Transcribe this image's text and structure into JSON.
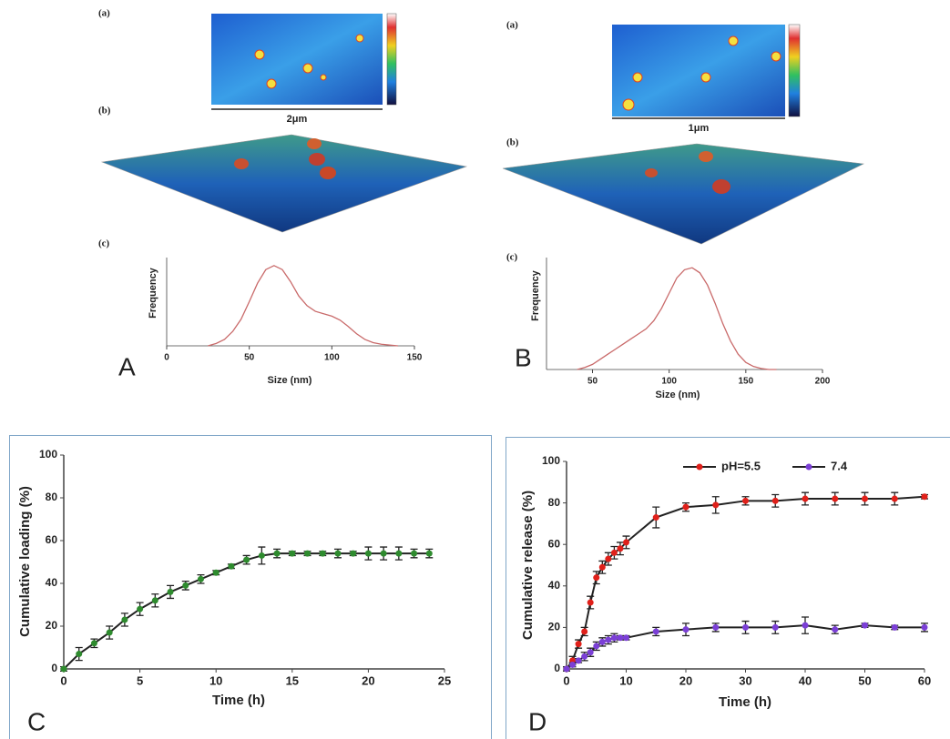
{
  "chart_data": [
    {
      "type": "line",
      "panel": "A",
      "subpanel_labels": [
        "(a)",
        "(b)",
        "(c)"
      ],
      "scale_bar": "2μm",
      "xlabel": "Size (nm)",
      "ylabel": "Frequency",
      "color": "#c96a6a",
      "x": [
        25,
        30,
        35,
        40,
        45,
        50,
        55,
        60,
        65,
        70,
        75,
        80,
        85,
        90,
        95,
        100,
        105,
        110,
        115,
        120,
        125,
        130,
        135,
        140
      ],
      "values": [
        0,
        0.03,
        0.08,
        0.18,
        0.33,
        0.55,
        0.78,
        0.95,
        1.0,
        0.95,
        0.8,
        0.62,
        0.5,
        0.43,
        0.4,
        0.37,
        0.32,
        0.24,
        0.15,
        0.08,
        0.04,
        0.02,
        0.01,
        0
      ],
      "xlim": [
        0,
        150
      ],
      "xticks": [
        0,
        50,
        100,
        150
      ],
      "ylim": [
        0,
        1.1
      ]
    },
    {
      "type": "line",
      "panel": "B",
      "subpanel_labels": [
        "(a)",
        "(b)",
        "(c)"
      ],
      "scale_bar": "1μm",
      "xlabel": "Size (nm)",
      "ylabel": "Frequency",
      "color": "#c96a6a",
      "x": [
        40,
        45,
        50,
        55,
        60,
        65,
        70,
        75,
        80,
        85,
        90,
        95,
        100,
        105,
        110,
        115,
        120,
        125,
        130,
        135,
        140,
        145,
        150,
        155,
        160,
        165,
        170
      ],
      "values": [
        0,
        0.02,
        0.05,
        0.1,
        0.15,
        0.2,
        0.25,
        0.3,
        0.35,
        0.4,
        0.48,
        0.6,
        0.75,
        0.9,
        0.98,
        1.0,
        0.95,
        0.83,
        0.65,
        0.45,
        0.28,
        0.15,
        0.07,
        0.03,
        0.01,
        0,
        0
      ],
      "xlim": [
        20,
        200
      ],
      "xticks": [
        50,
        100,
        150,
        200
      ],
      "ylim": [
        0,
        1.1
      ]
    },
    {
      "type": "line",
      "panel": "C",
      "xlabel": "Time (h)",
      "ylabel": "Cumulative loading (%)",
      "markers": true,
      "color": "#2e8b2e",
      "x": [
        0,
        1,
        2,
        3,
        4,
        5,
        6,
        7,
        8,
        9,
        10,
        11,
        12,
        13,
        14,
        15,
        16,
        17,
        18,
        19,
        20,
        21,
        22,
        23,
        24
      ],
      "values": [
        0,
        7,
        12,
        17,
        23,
        28,
        32,
        36,
        39,
        42,
        45,
        48,
        51,
        53,
        54,
        54,
        54,
        54,
        54,
        54,
        54,
        54,
        54,
        54,
        54
      ],
      "errors": [
        1,
        3,
        2,
        3,
        3,
        3,
        3,
        3,
        2,
        2,
        1,
        1,
        2,
        4,
        2,
        1,
        1,
        1,
        2,
        1,
        3,
        3,
        3,
        2,
        2
      ],
      "xlim": [
        0,
        25
      ],
      "xticks": [
        0,
        5,
        10,
        15,
        20,
        25
      ],
      "ylim": [
        0,
        100
      ],
      "yticks": [
        0,
        20,
        40,
        60,
        80,
        100
      ]
    },
    {
      "type": "line",
      "panel": "D",
      "xlabel": "Time (h)",
      "ylabel": "Cumulative release (%)",
      "markers": true,
      "x": [
        0,
        1,
        2,
        3,
        4,
        5,
        6,
        7,
        8,
        9,
        10,
        15,
        20,
        25,
        30,
        35,
        40,
        45,
        50,
        55,
        60
      ],
      "series": [
        {
          "name": "pH=5.5",
          "color": "#e0201a",
          "values": [
            0,
            4,
            12,
            18,
            32,
            44,
            49,
            53,
            56,
            58,
            61,
            73,
            78,
            79,
            81,
            81,
            82,
            82,
            82,
            82,
            83
          ],
          "errors": [
            1,
            2,
            2,
            2,
            3,
            3,
            3,
            3,
            3,
            3,
            3,
            5,
            2,
            4,
            2,
            3,
            3,
            3,
            3,
            3,
            1
          ]
        },
        {
          "name": "7.4",
          "color": "#7b3fd6",
          "values": [
            0,
            2,
            4,
            6,
            8,
            11,
            13,
            14,
            15,
            15,
            15,
            18,
            19,
            20,
            20,
            20,
            21,
            19,
            21,
            20,
            20
          ],
          "errors": [
            1,
            1,
            1,
            2,
            2,
            2,
            2,
            2,
            2,
            1,
            1,
            2,
            3,
            2,
            3,
            3,
            4,
            2,
            1,
            1,
            2
          ]
        }
      ],
      "xlim": [
        0,
        60
      ],
      "xticks": [
        0,
        10,
        20,
        30,
        40,
        50,
        60
      ],
      "ylim": [
        0,
        100
      ],
      "yticks": [
        0,
        20,
        40,
        60,
        80,
        100
      ]
    }
  ]
}
